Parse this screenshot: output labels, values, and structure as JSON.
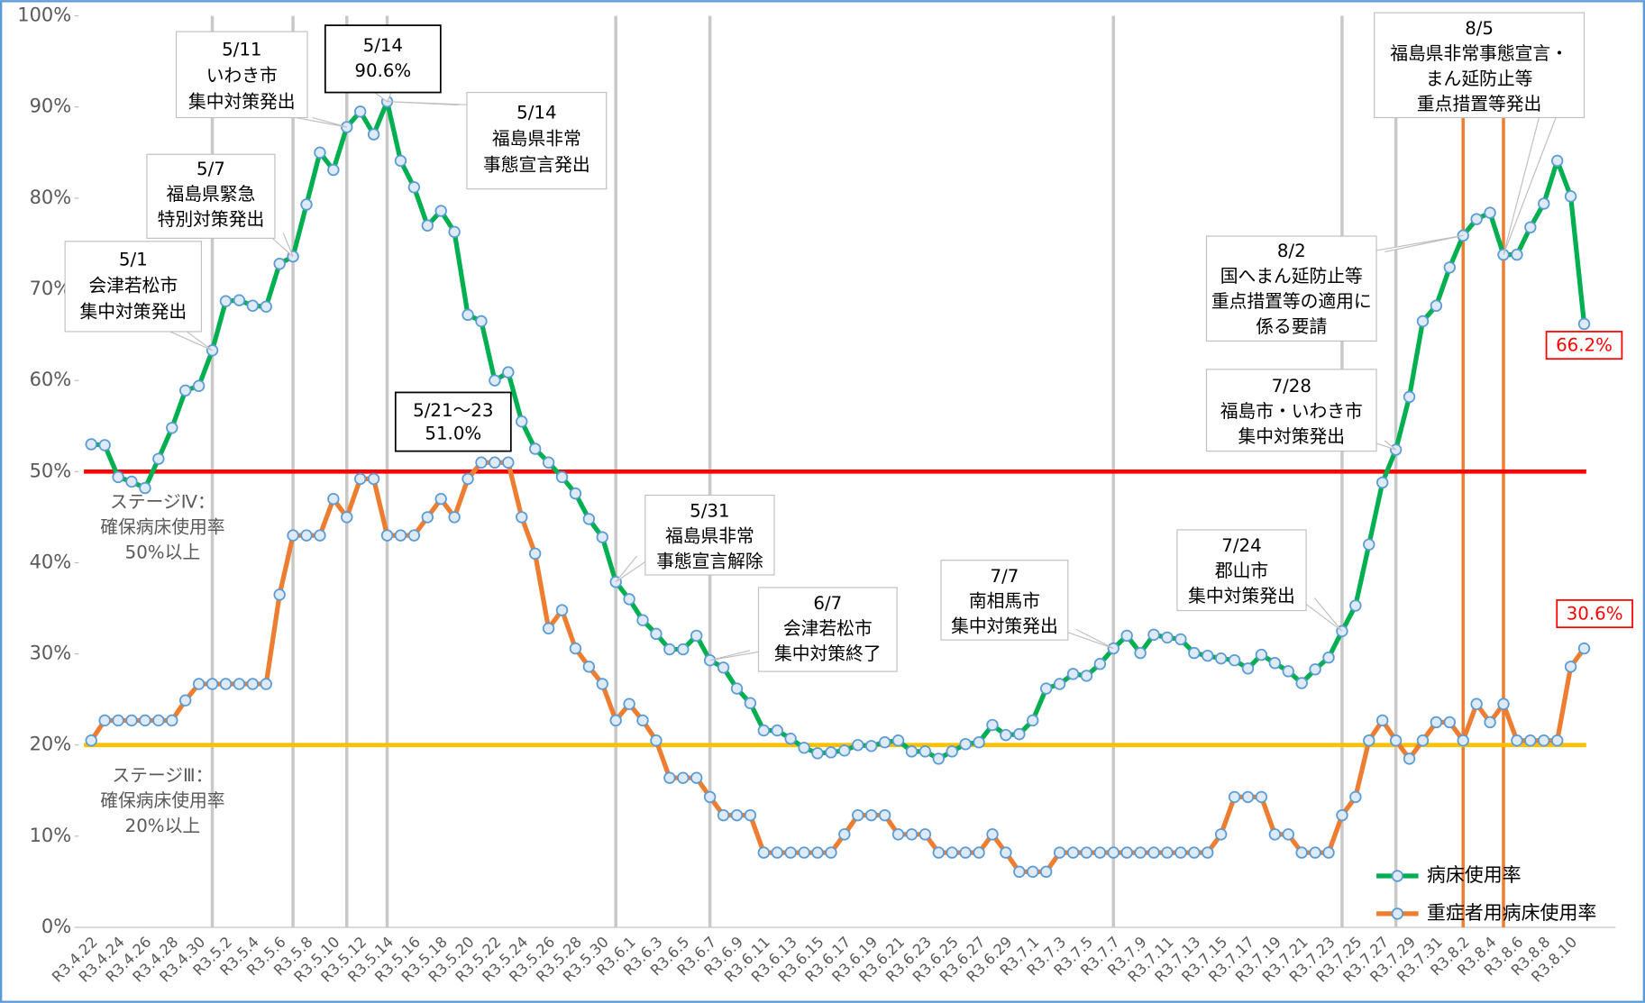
{
  "chart_data": {
    "type": "line",
    "categories": [
      "R3.4.22",
      null,
      "R3.4.24",
      null,
      "R3.4.26",
      null,
      "R3.4.28",
      null,
      "R3.4.30",
      null,
      "R3.5.2",
      null,
      "R3.5.4",
      null,
      "R3.5.6",
      null,
      "R3.5.8",
      null,
      "R3.5.10",
      null,
      "R3.5.12",
      null,
      "R3.5.14",
      null,
      "R3.5.16",
      null,
      "R3.5.18",
      null,
      "R3.5.20",
      null,
      "R3.5.22",
      null,
      "R3.5.24",
      null,
      "R3.5.26",
      null,
      "R3.5.28",
      null,
      "R3.5.30",
      null,
      "R3.6.1",
      null,
      "R3.6.3",
      null,
      "R3.6.5",
      null,
      "R3.6.7",
      null,
      "R3.6.9",
      null,
      "R3.6.11",
      null,
      "R3.6.13",
      null,
      "R3.6.15",
      null,
      "R3.6.17",
      null,
      "R3.6.19",
      null,
      "R3.6.21",
      null,
      "R3.6.23",
      null,
      "R3.6.25",
      null,
      "R3.6.27",
      null,
      "R3.6.29",
      null,
      "R3.7.1",
      null,
      "R3.7.3",
      null,
      "R3.7.5",
      null,
      "R3.7.7",
      null,
      "R3.7.9",
      null,
      "R3.7.11",
      null,
      "R3.7.13",
      null,
      "R3.7.15",
      null,
      "R3.7.17",
      null,
      "R3.7.19",
      null,
      "R3.7.21",
      null,
      "R3.7.23",
      null,
      "R3.7.25",
      null,
      "R3.7.27",
      null,
      "R3.7.29",
      null,
      "R3.7.31",
      null,
      "R3.8.2",
      null,
      "R3.8.4",
      null,
      "R3.8.6",
      null,
      "R3.8.8",
      null,
      "R3.8.10",
      null
    ],
    "series": [
      {
        "name": "病床使用率",
        "color": "#00b050",
        "end_label": "66.2%",
        "values": [
          53.0,
          52.9,
          49.4,
          48.9,
          48.2,
          51.4,
          54.8,
          58.9,
          59.4,
          63.3,
          68.7,
          68.8,
          68.2,
          68.1,
          72.8,
          73.6,
          79.3,
          85.0,
          83.1,
          87.8,
          89.5,
          87.0,
          90.6,
          84.1,
          81.2,
          77.0,
          78.6,
          76.3,
          67.2,
          66.5,
          60.0,
          60.9,
          55.5,
          52.5,
          51.0,
          49.4,
          47.6,
          44.8,
          42.8,
          37.9,
          36.0,
          33.7,
          32.2,
          30.5,
          30.5,
          32.0,
          29.3,
          28.5,
          26.2,
          24.6,
          21.6,
          21.6,
          20.7,
          19.7,
          19.1,
          19.2,
          19.4,
          20.0,
          19.9,
          20.3,
          20.5,
          19.3,
          19.3,
          18.5,
          19.3,
          20.1,
          20.3,
          22.2,
          21.1,
          21.2,
          22.7,
          26.2,
          26.7,
          27.8,
          27.6,
          28.9,
          30.6,
          32.0,
          30.1,
          32.1,
          31.8,
          31.6,
          30.1,
          29.8,
          29.5,
          29.3,
          28.4,
          29.9,
          29.0,
          28.1,
          26.8,
          28.3,
          29.6,
          32.5,
          35.3,
          42.0,
          48.8,
          52.4,
          58.2,
          66.5,
          68.2,
          72.4,
          75.9,
          77.7,
          78.4,
          73.8,
          73.8,
          76.8,
          79.4,
          84.1,
          80.2,
          66.2
        ]
      },
      {
        "name": "重症者用病床使用率",
        "color": "#ed7d31",
        "end_label": "30.6%",
        "values": [
          20.5,
          22.7,
          22.7,
          22.7,
          22.7,
          22.7,
          22.7,
          24.9,
          26.7,
          26.7,
          26.7,
          26.7,
          26.7,
          26.7,
          36.5,
          43.0,
          43.0,
          43.0,
          47.0,
          45.0,
          49.2,
          49.2,
          43.0,
          43.0,
          43.0,
          45.0,
          47.0,
          45.0,
          49.2,
          51.0,
          51.0,
          51.0,
          45.0,
          41.0,
          32.8,
          34.8,
          30.6,
          28.6,
          26.7,
          22.7,
          24.5,
          22.7,
          20.5,
          16.4,
          16.4,
          16.4,
          14.3,
          12.3,
          12.3,
          12.3,
          8.2,
          8.2,
          8.2,
          8.2,
          8.2,
          8.2,
          10.2,
          12.3,
          12.3,
          12.3,
          10.2,
          10.2,
          10.2,
          8.2,
          8.2,
          8.2,
          8.2,
          10.2,
          8.2,
          6.1,
          6.1,
          6.1,
          8.2,
          8.2,
          8.2,
          8.2,
          8.2,
          8.2,
          8.2,
          8.2,
          8.2,
          8.2,
          8.2,
          8.2,
          10.2,
          14.3,
          14.3,
          14.3,
          10.2,
          10.2,
          8.2,
          8.2,
          8.2,
          12.3,
          14.3,
          20.5,
          22.7,
          20.5,
          18.5,
          20.5,
          22.5,
          22.5,
          20.5,
          24.5,
          22.5,
          24.5,
          20.5,
          20.5,
          20.5,
          20.5,
          28.6,
          30.6
        ]
      }
    ],
    "ylim": [
      0,
      100
    ],
    "yticks": [
      {
        "value": 0,
        "label": "0%"
      },
      {
        "value": 10,
        "label": "10%"
      },
      {
        "value": 20,
        "label": "20%"
      },
      {
        "value": 30,
        "label": "30%"
      },
      {
        "value": 40,
        "label": "40%"
      },
      {
        "value": 50,
        "label": "50%"
      },
      {
        "value": 60,
        "label": "60%"
      },
      {
        "value": 70,
        "label": "70%"
      },
      {
        "value": 80,
        "label": "80%"
      },
      {
        "value": 90,
        "label": "90%"
      },
      {
        "value": 100,
        "label": "100%"
      }
    ],
    "reference_lines": [
      {
        "value": 50,
        "color": "#ff0000",
        "lines": [
          "ステージⅣ：",
          "確保病床使用率",
          "50%以上"
        ]
      },
      {
        "value": 20,
        "color": "#ffc000",
        "lines": [
          "ステージⅢ：",
          "確保病床使用率",
          "20%以上"
        ]
      }
    ],
    "annotations": [
      {
        "lines": [
          "5/1",
          "会津若松市",
          "集中対策発出"
        ]
      },
      {
        "lines": [
          "5/7",
          "福島県緊急",
          "特別対策発出"
        ]
      },
      {
        "lines": [
          "5/11",
          "いわき市",
          "集中対策発出"
        ]
      },
      {
        "lines": [
          "5/14",
          "90.6%"
        ]
      },
      {
        "lines": [
          "5/14",
          "福島県非常",
          "事態宣言発出"
        ]
      },
      {
        "lines": [
          "5/21～23",
          "51.0%"
        ]
      },
      {
        "lines": [
          "5/31",
          "福島県非常",
          "事態宣言解除"
        ]
      },
      {
        "lines": [
          "6/7",
          "会津若松市",
          "集中対策終了"
        ]
      },
      {
        "lines": [
          "7/7",
          "南相馬市",
          "集中対策発出"
        ]
      },
      {
        "lines": [
          "7/24",
          "郡山市",
          "集中対策発出"
        ]
      },
      {
        "lines": [
          "7/28",
          "福島市・いわき市",
          "集中対策発出"
        ]
      },
      {
        "lines": [
          "8/2",
          "国へまん延防止等",
          "重点措置等の適用に",
          "係る要請"
        ]
      },
      {
        "lines": [
          "8/5",
          "福島県非常事態宣言・",
          "まん延防止等",
          "重点措置等発出"
        ]
      }
    ],
    "legend": "lower right"
  }
}
